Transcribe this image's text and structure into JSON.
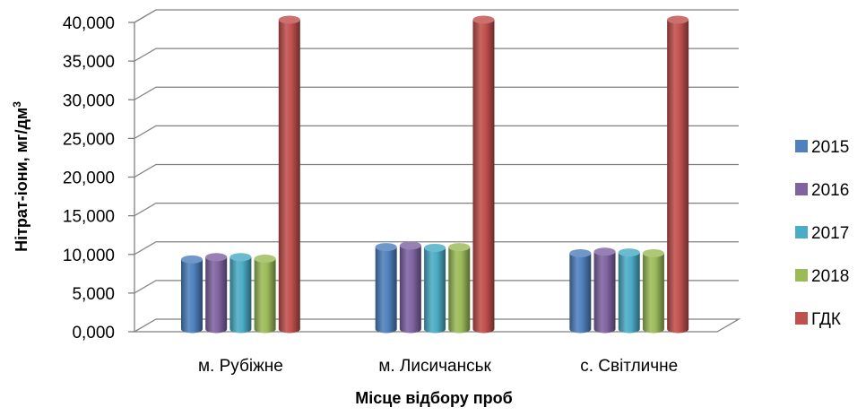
{
  "chart_data": {
    "type": "bar",
    "categories": [
      "м. Рубіжне",
      "м. Лисичанськ",
      "с. Світличне"
    ],
    "series": [
      {
        "name": "2015",
        "values": [
          9.0,
          10.6,
          9.8
        ],
        "color": "#4F81BD"
      },
      {
        "name": "2016",
        "values": [
          9.3,
          10.8,
          10.0
        ],
        "color": "#8064A2"
      },
      {
        "name": "2017",
        "values": [
          9.3,
          10.5,
          9.9
        ],
        "color": "#4BACC6"
      },
      {
        "name": "2018",
        "values": [
          9.1,
          10.6,
          9.8
        ],
        "color": "#9BBB59"
      },
      {
        "name": "ГДК",
        "values": [
          40.0,
          40.0,
          40.0
        ],
        "color": "#C0504D"
      }
    ],
    "y_tick_labels": [
      "0,000",
      "5,000",
      "10,000",
      "15,000",
      "20,000",
      "25,000",
      "30,000",
      "35,000",
      "40,000"
    ],
    "ylim": [
      0,
      40
    ],
    "ytick_step": 5,
    "xlabel": "Місце відбору проб",
    "ylabel_main": "Нітрат-іони, мг/дм",
    "ylabel_sup": "3",
    "grid": true,
    "legend_position": "right",
    "style": "3d-cylinder"
  }
}
